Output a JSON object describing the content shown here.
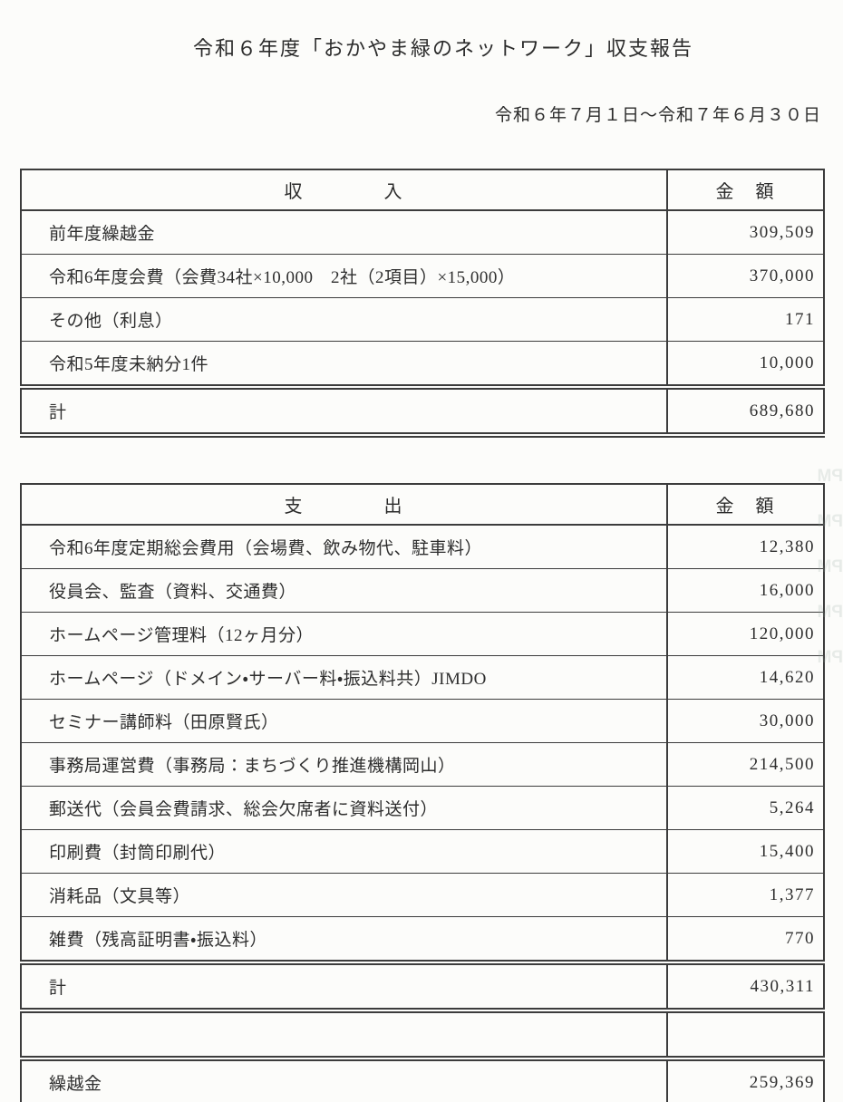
{
  "page": {
    "title": "令和６年度「おかやま緑のネットワーク」収支報告",
    "period": "令和６年７月１日～令和７年６月３０日"
  },
  "colors": {
    "paper": "#fcfcfa",
    "ink": "#2e2e2e",
    "border": "#3c3c3c"
  },
  "income_table": {
    "header": {
      "category": "収　　　　入",
      "amount": "金　額"
    },
    "rows": [
      {
        "label": "前年度繰越金",
        "amount": "309,509",
        "type": "normal"
      },
      {
        "label": "令和6年度会費（会費34社×10,000　2社（2項目）×15,000）",
        "amount": "370,000",
        "type": "normal"
      },
      {
        "label": "その他（利息）",
        "amount": "171",
        "type": "normal"
      },
      {
        "label": "令和5年度未納分1件",
        "amount": "10,000",
        "type": "normal"
      },
      {
        "label": "計",
        "amount": "689,680",
        "type": "total"
      }
    ]
  },
  "expense_table": {
    "header": {
      "category": "支　　　　出",
      "amount": "金　額"
    },
    "rows": [
      {
        "label": "令和6年度定期総会費用（会場費、飲み物代、駐車料）",
        "amount": "12,380",
        "type": "normal"
      },
      {
        "label": "役員会、監査（資料、交通費）",
        "amount": "16,000",
        "type": "normal"
      },
      {
        "label": "ホームページ管理料（12ヶ月分）",
        "amount": "120,000",
        "type": "normal"
      },
      {
        "label": "ホームページ（ドメイン・サーバー料・振込料共）JIMDO",
        "amount": "14,620",
        "type": "normal"
      },
      {
        "label": "セミナー講師料（田原賢氏）",
        "amount": "30,000",
        "type": "normal"
      },
      {
        "label": "事務局運営費（事務局：まちづくり推進機構岡山）",
        "amount": "214,500",
        "type": "normal"
      },
      {
        "label": "郵送代（会員会費請求、総会欠席者に資料送付）",
        "amount": "5,264",
        "type": "normal"
      },
      {
        "label": "印刷費（封筒印刷代）",
        "amount": "15,400",
        "type": "normal"
      },
      {
        "label": "消耗品（文具等）",
        "amount": "1,377",
        "type": "normal"
      },
      {
        "label": "雑費（残高証明書・振込料）",
        "amount": "770",
        "type": "normal"
      },
      {
        "label": "計",
        "amount": "430,311",
        "type": "total"
      },
      {
        "label": "",
        "amount": "",
        "type": "empty"
      },
      {
        "label": "繰越金",
        "amount": "259,369",
        "type": "carryover"
      }
    ]
  },
  "scan_artifacts": {
    "ghost_marks": [
      "PM",
      "PM",
      "PM",
      "PM",
      "PM"
    ]
  }
}
